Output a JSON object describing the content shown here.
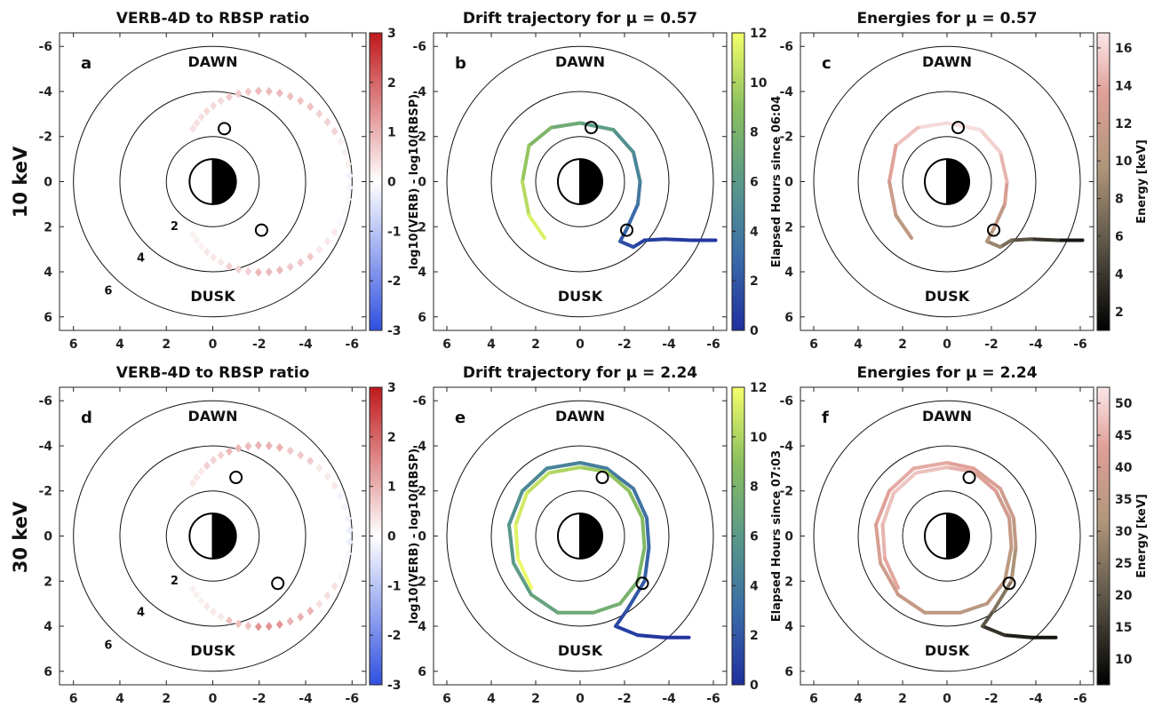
{
  "row_labels": [
    "10 keV",
    "30 keV"
  ],
  "colors": {
    "ratio_colormap": [
      "#3050e0",
      "#ffffff",
      "#c0191c"
    ],
    "hours_colormap": [
      "#1f2f9e",
      "#3a6ca8",
      "#5a9a88",
      "#8abf5e",
      "#f4ff6a"
    ],
    "energy_colormap": [
      "#000000",
      "#60584a",
      "#b0967a",
      "#e0a098",
      "#fbe7e9"
    ]
  },
  "chart_data": [
    {
      "type": "scatter",
      "panel": "a",
      "title": "VERB-4D to RBSP ratio",
      "xlim": [
        6.6,
        -6.6
      ],
      "ylim": [
        6.6,
        -6.6
      ],
      "xticks": [
        "6",
        "4",
        "2",
        "0",
        "-2",
        "-4",
        "-6"
      ],
      "yticks": [
        "-6",
        "-4",
        "-2",
        "0",
        "2",
        "4",
        "6"
      ],
      "labels": {
        "dawn": "DAWN",
        "dusk": "DUSK"
      },
      "ring_labels": [
        "2",
        "4",
        "6"
      ],
      "colorbar": {
        "label": "log10(VERB) - log10(RBSP)",
        "min": -3,
        "max": 3,
        "ticks": [
          "3",
          "2",
          "1",
          "0",
          "-1",
          "-2",
          "-3"
        ]
      },
      "track": {
        "r_start": 2.5,
        "phi_start": 200,
        "r_peak": 5.9,
        "phi_peak": 90,
        "r_end": 2.5,
        "phi_end": -20
      },
      "values_profile": [
        0.2,
        0.3,
        0.6,
        0.9,
        0.7,
        0.3,
        -0.1,
        -0.2,
        0.2,
        0.6,
        0.8,
        0.9,
        0.7,
        0.5,
        0.4
      ],
      "markers": [
        {
          "x": -0.5,
          "y": -2.35
        },
        {
          "x": -2.1,
          "y": 2.15
        }
      ]
    },
    {
      "type": "line",
      "panel": "b",
      "title": "Drift trajectory for μ = 0.57",
      "xlim": [
        6.6,
        -6.6
      ],
      "ylim": [
        6.6,
        -6.6
      ],
      "xticks": [
        "6",
        "4",
        "2",
        "0",
        "-2",
        "-4",
        "-6"
      ],
      "yticks": [
        "-6",
        "-4",
        "-2",
        "0",
        "2",
        "4",
        "6"
      ],
      "labels": {
        "dawn": "DAWN",
        "dusk": "DUSK"
      },
      "colorbar": {
        "label": "Elapsed Hours since 06:04",
        "min": 0,
        "max": 12,
        "ticks": [
          "12",
          "10",
          "8",
          "6",
          "4",
          "2",
          "0"
        ]
      },
      "trajectory": [
        [
          -6.1,
          2.6
        ],
        [
          -5,
          2.6
        ],
        [
          -3.8,
          2.55
        ],
        [
          -2.9,
          2.6
        ],
        [
          -2.4,
          2.9
        ],
        [
          -1.8,
          2.65
        ],
        [
          -2.1,
          2.1
        ],
        [
          -2.6,
          1.0
        ],
        [
          -2.7,
          0
        ],
        [
          -2.4,
          -1.3
        ],
        [
          -1.5,
          -2.3
        ],
        [
          0,
          -2.6
        ],
        [
          1.3,
          -2.4
        ],
        [
          2.3,
          -1.6
        ],
        [
          2.6,
          0
        ],
        [
          2.3,
          1.5
        ],
        [
          1.6,
          2.5
        ]
      ],
      "time_values": [
        0.3,
        0.4,
        0.6,
        0.8,
        1.1,
        1.8,
        2.5,
        3.4,
        4.2,
        5.0,
        5.8,
        6.8,
        7.8,
        8.8,
        9.8,
        10.8,
        11.8
      ],
      "markers": [
        {
          "x": -0.5,
          "y": -2.4
        },
        {
          "x": -2.1,
          "y": 2.15
        }
      ]
    },
    {
      "type": "line",
      "panel": "c",
      "title": "Energies for μ = 0.57",
      "xlim": [
        6.6,
        -6.6
      ],
      "ylim": [
        6.6,
        -6.6
      ],
      "xticks": [
        "6",
        "4",
        "2",
        "0",
        "-2",
        "-4",
        "-6"
      ],
      "yticks": [
        "-6",
        "-4",
        "-2",
        "0",
        "2",
        "4",
        "6"
      ],
      "labels": {
        "dawn": "DAWN",
        "dusk": "DUSK"
      },
      "colorbar": {
        "label": "Energy [keV]",
        "min": 1,
        "max": 16.8,
        "ticks": [
          "16",
          "14",
          "12",
          "10",
          "8",
          "6",
          "4",
          "2"
        ]
      },
      "trajectory": [
        [
          -6.1,
          2.6
        ],
        [
          -5,
          2.6
        ],
        [
          -3.8,
          2.55
        ],
        [
          -2.9,
          2.6
        ],
        [
          -2.4,
          2.9
        ],
        [
          -1.8,
          2.65
        ],
        [
          -2.1,
          2.1
        ],
        [
          -2.6,
          1.0
        ],
        [
          -2.7,
          0
        ],
        [
          -2.4,
          -1.3
        ],
        [
          -1.5,
          -2.3
        ],
        [
          0,
          -2.6
        ],
        [
          1.3,
          -2.4
        ],
        [
          2.3,
          -1.6
        ],
        [
          2.6,
          0
        ],
        [
          2.3,
          1.5
        ],
        [
          1.6,
          2.5
        ]
      ],
      "energy_values": [
        1.5,
        2.5,
        4,
        5.5,
        7,
        8.5,
        9.5,
        11,
        13,
        15,
        16,
        16.5,
        15.5,
        14,
        12,
        10.5,
        9.5
      ],
      "markers": [
        {
          "x": -0.5,
          "y": -2.4
        },
        {
          "x": -2.1,
          "y": 2.15
        }
      ]
    },
    {
      "type": "scatter",
      "panel": "d",
      "title": "VERB-4D to RBSP ratio",
      "xlim": [
        6.6,
        -6.6
      ],
      "ylim": [
        6.6,
        -6.6
      ],
      "xticks": [
        "6",
        "4",
        "2",
        "0",
        "-2",
        "-4",
        "-6"
      ],
      "yticks": [
        "-6",
        "-4",
        "-2",
        "0",
        "2",
        "4",
        "6"
      ],
      "labels": {
        "dawn": "DAWN",
        "dusk": "DUSK"
      },
      "ring_labels": [
        "2",
        "4",
        "6"
      ],
      "colorbar": {
        "label": "log10(VERB) - log10(RBSP)",
        "min": -3,
        "max": 3,
        "ticks": [
          "3",
          "2",
          "1",
          "0",
          "-1",
          "-2",
          "-3"
        ]
      },
      "track": {
        "r_start": 2.5,
        "phi_start": 200,
        "r_peak": 5.9,
        "phi_peak": 90,
        "r_end": 2.5,
        "phi_end": -20
      },
      "values_profile": [
        0.2,
        0.3,
        0.8,
        1.4,
        1.0,
        0.4,
        -0.1,
        -0.3,
        -0.2,
        0.3,
        0.7,
        1.0,
        0.9,
        0.6,
        0.3
      ],
      "markers": [
        {
          "x": -1.0,
          "y": -2.6
        },
        {
          "x": -2.8,
          "y": 2.1
        }
      ]
    },
    {
      "type": "line",
      "panel": "e",
      "title": "Drift trajectory for μ = 2.24",
      "xlim": [
        6.6,
        -6.6
      ],
      "ylim": [
        6.6,
        -6.6
      ],
      "xticks": [
        "6",
        "4",
        "2",
        "0",
        "-2",
        "-4",
        "-6"
      ],
      "yticks": [
        "-6",
        "-4",
        "-2",
        "0",
        "2",
        "4",
        "6"
      ],
      "labels": {
        "dawn": "DAWN",
        "dusk": "DUSK"
      },
      "colorbar": {
        "label": "Elapsed Hours since 07:03",
        "min": 0,
        "max": 12,
        "ticks": [
          "12",
          "10",
          "8",
          "6",
          "4",
          "2",
          "0"
        ]
      },
      "trajectory": [
        [
          -4.9,
          4.5
        ],
        [
          -3.8,
          4.5
        ],
        [
          -2.6,
          4.4
        ],
        [
          -1.6,
          4.0
        ],
        [
          -2.1,
          3.3
        ],
        [
          -2.9,
          2.0
        ],
        [
          -3.1,
          0.5
        ],
        [
          -3.0,
          -0.8
        ],
        [
          -2.4,
          -2.1
        ],
        [
          -1.2,
          -3.0
        ],
        [
          0,
          -3.25
        ],
        [
          1.5,
          -3.0
        ],
        [
          2.6,
          -2.0
        ],
        [
          3.2,
          -0.5
        ],
        [
          3.0,
          1.2
        ],
        [
          2.2,
          2.6
        ],
        [
          1.0,
          3.4
        ],
        [
          -0.6,
          3.4
        ],
        [
          -1.8,
          3.0
        ],
        [
          -2.6,
          2.0
        ],
        [
          -2.9,
          0.5
        ],
        [
          -2.8,
          -0.8
        ],
        [
          -2.2,
          -2.0
        ],
        [
          -1.2,
          -2.85
        ],
        [
          0,
          -3.05
        ],
        [
          1.4,
          -2.8
        ],
        [
          2.4,
          -1.9
        ],
        [
          2.9,
          -0.5
        ],
        [
          2.8,
          1.0
        ],
        [
          2.2,
          2.3
        ]
      ],
      "time_values": [
        0.2,
        0.3,
        0.5,
        1.0,
        1.6,
        2.2,
        2.8,
        3.3,
        3.7,
        4.0,
        4.3,
        4.6,
        5.0,
        5.5,
        6.0,
        6.5,
        7.0,
        7.4,
        7.8,
        8.1,
        8.4,
        8.7,
        9.0,
        9.4,
        9.8,
        10.3,
        10.8,
        11.2,
        11.6,
        11.9
      ],
      "markers": [
        {
          "x": -1.0,
          "y": -2.6
        },
        {
          "x": -2.8,
          "y": 2.1
        }
      ]
    },
    {
      "type": "line",
      "panel": "f",
      "title": "Energies for μ = 2.24",
      "xlim": [
        6.6,
        -6.6
      ],
      "ylim": [
        6.6,
        -6.6
      ],
      "xticks": [
        "6",
        "4",
        "2",
        "0",
        "-2",
        "-4",
        "-6"
      ],
      "yticks": [
        "-6",
        "-4",
        "-2",
        "0",
        "2",
        "4",
        "6"
      ],
      "labels": {
        "dawn": "DAWN",
        "dusk": "DUSK"
      },
      "colorbar": {
        "label": "Energy [keV]",
        "min": 6,
        "max": 52.5,
        "ticks": [
          "50",
          "45",
          "40",
          "35",
          "30",
          "25",
          "20",
          "15",
          "10"
        ]
      },
      "trajectory": [
        [
          -4.9,
          4.5
        ],
        [
          -3.8,
          4.5
        ],
        [
          -2.6,
          4.4
        ],
        [
          -1.6,
          4.0
        ],
        [
          -2.1,
          3.3
        ],
        [
          -2.9,
          2.0
        ],
        [
          -3.1,
          0.5
        ],
        [
          -3.0,
          -0.8
        ],
        [
          -2.4,
          -2.1
        ],
        [
          -1.2,
          -3.0
        ],
        [
          0,
          -3.25
        ],
        [
          1.5,
          -3.0
        ],
        [
          2.6,
          -2.0
        ],
        [
          3.2,
          -0.5
        ],
        [
          3.0,
          1.2
        ],
        [
          2.2,
          2.6
        ],
        [
          1.0,
          3.4
        ],
        [
          -0.6,
          3.4
        ],
        [
          -1.8,
          3.0
        ],
        [
          -2.6,
          2.0
        ],
        [
          -2.9,
          0.5
        ],
        [
          -2.8,
          -0.8
        ],
        [
          -2.2,
          -2.0
        ],
        [
          -1.2,
          -2.85
        ],
        [
          0,
          -3.05
        ],
        [
          1.4,
          -2.8
        ],
        [
          2.4,
          -1.9
        ],
        [
          2.9,
          -0.5
        ],
        [
          2.8,
          1.0
        ],
        [
          2.2,
          2.3
        ]
      ],
      "energy_values": [
        8,
        9,
        11,
        14,
        20,
        26,
        31,
        35,
        38,
        40,
        42,
        43,
        42,
        40,
        38,
        35,
        33,
        32,
        32,
        32,
        33,
        35,
        38,
        42,
        45,
        47,
        47,
        45,
        43,
        41
      ],
      "markers": [
        {
          "x": -1.0,
          "y": -2.6
        },
        {
          "x": -2.8,
          "y": 2.1
        }
      ]
    }
  ]
}
